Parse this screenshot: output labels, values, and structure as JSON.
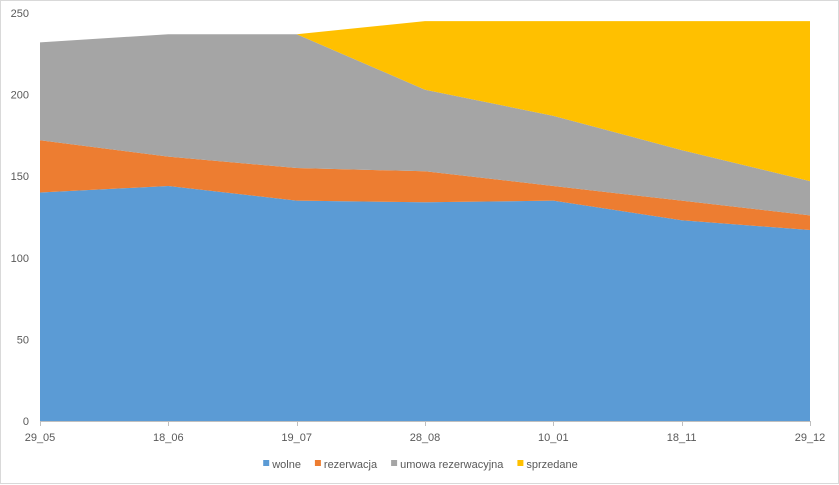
{
  "chart_data": {
    "type": "area",
    "stacked": true,
    "categories": [
      "29_05",
      "18_06",
      "19_07",
      "28_08",
      "10_01",
      "18_11",
      "29_12"
    ],
    "series": [
      {
        "name": "wolne",
        "color": "#5b9bd5",
        "values": [
          140,
          144,
          135,
          134,
          135,
          123,
          117
        ]
      },
      {
        "name": "rezerwacja",
        "color": "#ed7d31",
        "values": [
          32,
          18,
          20,
          19,
          9,
          12,
          9
        ]
      },
      {
        "name": "umowa rezerwacyjna",
        "color": "#a5a5a5",
        "values": [
          60,
          75,
          82,
          50,
          43,
          31,
          21
        ]
      },
      {
        "name": "sprzedane",
        "color": "#ffc000",
        "values": [
          0,
          0,
          0,
          42,
          58,
          79,
          98
        ]
      }
    ],
    "y_ticks": [
      0,
      50,
      100,
      150,
      200,
      250
    ],
    "ylim": [
      0,
      250
    ],
    "grid": false,
    "legend_position": "bottom",
    "title": "",
    "xlabel": "",
    "ylabel": ""
  }
}
